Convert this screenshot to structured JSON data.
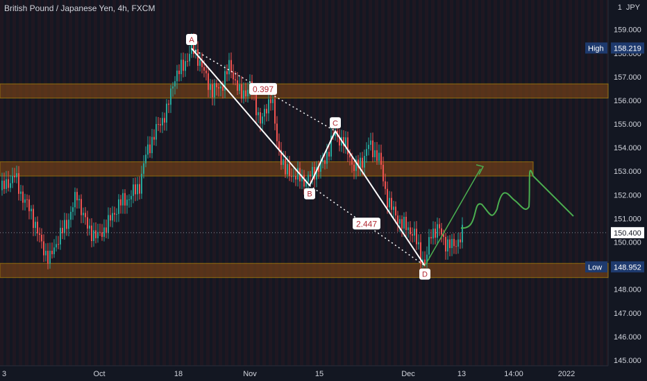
{
  "header": {
    "title": "British Pound / Japanese Yen, 4h, FXCM",
    "currency": "JPY",
    "currency_marker": "1"
  },
  "chart_data": {
    "type": "candlestick",
    "symbol": "GBPJPY",
    "timeframe": "4h",
    "yticks": [
      145,
      146,
      147,
      148,
      149,
      150,
      151,
      152,
      153,
      154,
      155,
      156,
      157,
      158,
      159
    ],
    "ylim": [
      145.0,
      159.9
    ],
    "xticks": [
      "3",
      "Oct",
      "18",
      "Nov",
      "15",
      "Dec",
      "13",
      "14:00",
      "2022"
    ],
    "price_markers": [
      {
        "label": "High",
        "value": "158.219"
      },
      {
        "label": "",
        "value": "150.400"
      },
      {
        "label": "Low",
        "value": "148.952"
      }
    ],
    "zones": [
      {
        "low": 156.1,
        "high": 156.7
      },
      {
        "low": 152.8,
        "high": 153.4
      },
      {
        "low": 148.5,
        "high": 149.1
      }
    ],
    "pattern_points": [
      {
        "name": "A",
        "value": 158.2
      },
      {
        "name": "B",
        "value": 152.4
      },
      {
        "name": "C",
        "value": 154.7
      },
      {
        "name": "D",
        "value": 149.0
      }
    ],
    "ratios": [
      "0.397",
      "2.447"
    ],
    "price_path": [
      [
        0,
        152.2
      ],
      [
        20,
        152.8
      ],
      [
        30,
        152.0
      ],
      [
        45,
        151.2
      ],
      [
        55,
        150.2
      ],
      [
        70,
        149.2
      ],
      [
        80,
        150.0
      ],
      [
        95,
        150.8
      ],
      [
        110,
        152.0
      ],
      [
        125,
        150.6
      ],
      [
        140,
        150.2
      ],
      [
        155,
        150.8
      ],
      [
        170,
        151.6
      ],
      [
        185,
        151.9
      ],
      [
        200,
        152.4
      ],
      [
        210,
        153.8
      ],
      [
        225,
        154.8
      ],
      [
        240,
        155.6
      ],
      [
        250,
        157.0
      ],
      [
        262,
        157.4
      ],
      [
        275,
        158.2
      ],
      [
        285,
        157.8
      ],
      [
        295,
        157.0
      ],
      [
        305,
        156.4
      ],
      [
        318,
        156.6
      ],
      [
        330,
        157.5
      ],
      [
        345,
        156.2
      ],
      [
        360,
        156.6
      ],
      [
        375,
        155.0
      ],
      [
        390,
        156.3
      ],
      [
        398,
        154.2
      ],
      [
        410,
        153.0
      ],
      [
        425,
        152.8
      ],
      [
        440,
        152.6
      ],
      [
        455,
        153.1
      ],
      [
        465,
        153.3
      ],
      [
        480,
        154.6
      ],
      [
        495,
        154.2
      ],
      [
        510,
        153.1
      ],
      [
        520,
        153.4
      ],
      [
        530,
        154.1
      ],
      [
        545,
        153.6
      ],
      [
        555,
        152.0
      ],
      [
        565,
        151.3
      ],
      [
        580,
        150.7
      ],
      [
        595,
        150.4
      ],
      [
        605,
        149.4
      ],
      [
        612,
        149.1
      ],
      [
        620,
        150.4
      ],
      [
        630,
        150.6
      ],
      [
        640,
        150.0
      ],
      [
        652,
        149.8
      ],
      [
        666,
        150.4
      ]
    ]
  }
}
